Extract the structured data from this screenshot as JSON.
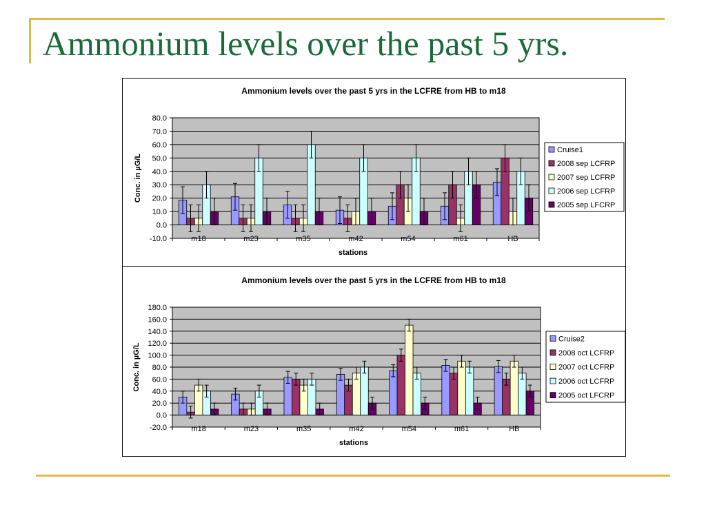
{
  "slide": {
    "title": "Ammonium levels over the past 5 yrs."
  },
  "colors": {
    "title": "#1a6b3a",
    "rule": "#e0b84a",
    "plot_background": "#c0c0c0",
    "series": [
      "#9999ff",
      "#993366",
      "#ffffcc",
      "#ccffff",
      "#660066"
    ]
  },
  "chart_data": [
    {
      "type": "bar",
      "title": "Ammonium levels over the past 5 yrs in the LCFRE from HB to m18",
      "xlabel": "stations",
      "ylabel": "Conc. in µG/L",
      "ylim": [
        -10,
        80
      ],
      "yticks": [
        "80.0",
        "70.0",
        "60.0",
        "50.0",
        "40.0",
        "30.0",
        "20.0",
        "10.0",
        "0.0",
        "-10.0"
      ],
      "grid": true,
      "legend_position": "right",
      "error_bars": true,
      "categories": [
        "m18",
        "m23",
        "m35",
        "m42",
        "m54",
        "m61",
        "HB"
      ],
      "series": [
        {
          "name": "Cruise1",
          "values": [
            18.5,
            21,
            15,
            11,
            14,
            14,
            32
          ],
          "errors": [
            10,
            10,
            10,
            10,
            10,
            10,
            10
          ]
        },
        {
          "name": "2008 sep LCFRP",
          "values": [
            5,
            5,
            5,
            5,
            30,
            30,
            50
          ],
          "errors": [
            10,
            10,
            10,
            10,
            10,
            10,
            10
          ]
        },
        {
          "name": "2007 sep LCFRP",
          "values": [
            5,
            5,
            5,
            10,
            20,
            5,
            10
          ],
          "errors": [
            10,
            10,
            10,
            10,
            10,
            10,
            10
          ]
        },
        {
          "name": "2006 sep LCFRP",
          "values": [
            30,
            50,
            60,
            50,
            50,
            40,
            40
          ],
          "errors": [
            10,
            10,
            10,
            10,
            10,
            10,
            10
          ]
        },
        {
          "name": "2005 sep LFCRP",
          "values": [
            10,
            10,
            10,
            10,
            10,
            30,
            20
          ],
          "errors": [
            10,
            10,
            10,
            10,
            10,
            10,
            10
          ]
        }
      ]
    },
    {
      "type": "bar",
      "title": "Ammonium levels over the past 5 yrs in the LCFRE from HB to m18",
      "xlabel": "stations",
      "ylabel": "Conc. in µG/L",
      "ylim": [
        -20,
        180
      ],
      "yticks": [
        "180.0",
        "160.0",
        "140.0",
        "120.0",
        "100.0",
        "80.0",
        "60.0",
        "40.0",
        "20.0",
        "0.0",
        "-20.0"
      ],
      "grid": true,
      "legend_position": "right",
      "error_bars": true,
      "categories": [
        "m18",
        "m23",
        "m35",
        "m42",
        "m54",
        "m61",
        "HB"
      ],
      "series": [
        {
          "name": "Cruise2",
          "values": [
            30,
            35,
            63,
            68,
            74,
            83,
            81
          ],
          "errors": [
            10,
            10,
            10,
            10,
            10,
            10,
            10
          ]
        },
        {
          "name": "2008 oct LCFRP",
          "values": [
            5,
            10,
            60,
            50,
            100,
            70,
            60
          ],
          "errors": [
            10,
            10,
            10,
            10,
            10,
            10,
            10
          ]
        },
        {
          "name": "2007 oct LCFRP",
          "values": [
            50,
            10,
            50,
            70,
            150,
            90,
            90
          ],
          "errors": [
            10,
            10,
            10,
            10,
            10,
            10,
            10
          ]
        },
        {
          "name": "2006 oct LCFRP",
          "values": [
            40,
            40,
            60,
            80,
            70,
            80,
            70
          ],
          "errors": [
            10,
            10,
            10,
            10,
            10,
            10,
            10
          ]
        },
        {
          "name": "2005 oct LFCRP",
          "values": [
            10,
            10,
            10,
            20,
            20,
            20,
            40
          ],
          "errors": [
            10,
            10,
            10,
            10,
            10,
            10,
            10
          ]
        }
      ]
    }
  ]
}
